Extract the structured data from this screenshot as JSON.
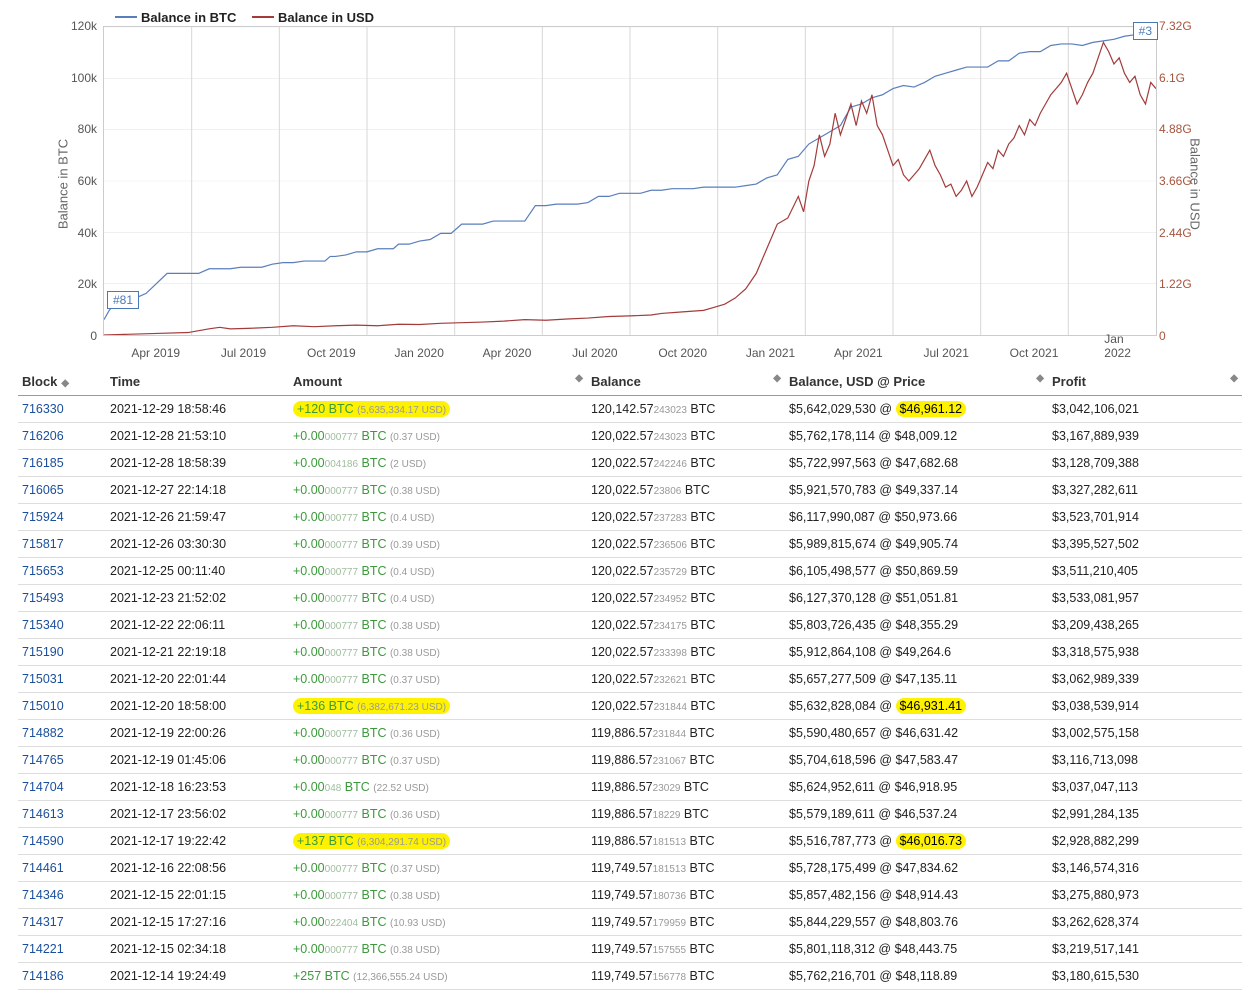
{
  "chart": {
    "width_plot": 1054,
    "height_plot": 310,
    "legend": [
      {
        "label": "Balance in BTC",
        "color": "#5a7ebc"
      },
      {
        "label": "Balance in USD",
        "color": "#a33b3b"
      }
    ],
    "y_left": {
      "title": "Balance in BTC",
      "ticks": [
        "0",
        "20k",
        "40k",
        "60k",
        "80k",
        "100k",
        "120k"
      ],
      "color": "#555"
    },
    "y_right": {
      "title": "Balance in USD",
      "ticks": [
        "0",
        "1.22G",
        "2.44G",
        "3.66G",
        "4.88G",
        "6.1G",
        "7.32G"
      ],
      "color": "#a8543d"
    },
    "x_labels": [
      "Apr 2019",
      "Jul 2019",
      "Oct 2019",
      "Jan 2020",
      "Apr 2020",
      "Jul 2020",
      "Oct 2020",
      "Jan 2021",
      "Apr 2021",
      "Jul 2021",
      "Oct 2021",
      "Jan 2022"
    ],
    "btc_color": "#5a7ebc",
    "usd_color": "#a33b3b",
    "grid_color": "#d9d9d9",
    "btc_line": [
      [
        0,
        95
      ],
      [
        0.5,
        92
      ],
      [
        1,
        90
      ],
      [
        2,
        90
      ],
      [
        3,
        88
      ],
      [
        4,
        86.5
      ],
      [
        6,
        80
      ],
      [
        8,
        80
      ],
      [
        9,
        80
      ],
      [
        10,
        78.5
      ],
      [
        12,
        78.5
      ],
      [
        13,
        78
      ],
      [
        15,
        78
      ],
      [
        16,
        77
      ],
      [
        17,
        76.5
      ],
      [
        18,
        76.5
      ],
      [
        19,
        76
      ],
      [
        21,
        76
      ],
      [
        21.5,
        74.5
      ],
      [
        22,
        74.5
      ],
      [
        23,
        74
      ],
      [
        24,
        73
      ],
      [
        25,
        73
      ],
      [
        26,
        72
      ],
      [
        27.5,
        72
      ],
      [
        28,
        70.5
      ],
      [
        29,
        70.5
      ],
      [
        30,
        69.5
      ],
      [
        31,
        69
      ],
      [
        32,
        67
      ],
      [
        33,
        67
      ],
      [
        34,
        64
      ],
      [
        36,
        64
      ],
      [
        37,
        63
      ],
      [
        39,
        63
      ],
      [
        40,
        63
      ],
      [
        41,
        58
      ],
      [
        42,
        58
      ],
      [
        43,
        57.5
      ],
      [
        45,
        57.5
      ],
      [
        46,
        57
      ],
      [
        47,
        55
      ],
      [
        48,
        55
      ],
      [
        49,
        54
      ],
      [
        51,
        54
      ],
      [
        52,
        53
      ],
      [
        53,
        53
      ],
      [
        54,
        52.5
      ],
      [
        56,
        52.5
      ],
      [
        57,
        52
      ],
      [
        59,
        52
      ],
      [
        60,
        52
      ],
      [
        61,
        51.5
      ],
      [
        62,
        51
      ],
      [
        63,
        49
      ],
      [
        64,
        48
      ],
      [
        65,
        43
      ],
      [
        66,
        42
      ],
      [
        67,
        38
      ],
      [
        68,
        36
      ],
      [
        69,
        34
      ],
      [
        70,
        32
      ],
      [
        71,
        26
      ],
      [
        72,
        25
      ],
      [
        73,
        23
      ],
      [
        74,
        22
      ],
      [
        75,
        20
      ],
      [
        76,
        19
      ],
      [
        77,
        19.5
      ],
      [
        78,
        18
      ],
      [
        79,
        16
      ],
      [
        80,
        15
      ],
      [
        81,
        14
      ],
      [
        82,
        13
      ],
      [
        83,
        13
      ],
      [
        84,
        13
      ],
      [
        85,
        11
      ],
      [
        86,
        11
      ],
      [
        87,
        8.5
      ],
      [
        88,
        8
      ],
      [
        89,
        8
      ],
      [
        90,
        6
      ],
      [
        91,
        5.5
      ],
      [
        92,
        5.5
      ],
      [
        93,
        6
      ],
      [
        94,
        5
      ],
      [
        95,
        4.5
      ],
      [
        96,
        4
      ],
      [
        97,
        3
      ],
      [
        98,
        2.5
      ],
      [
        99,
        1
      ],
      [
        100,
        0
      ]
    ],
    "usd_line": [
      [
        0,
        100
      ],
      [
        2,
        99.8
      ],
      [
        5,
        99.5
      ],
      [
        8,
        99.2
      ],
      [
        10,
        98
      ],
      [
        11,
        97.5
      ],
      [
        12,
        98
      ],
      [
        14,
        97.8
      ],
      [
        16,
        97.5
      ],
      [
        18,
        97
      ],
      [
        20,
        97.3
      ],
      [
        22,
        97
      ],
      [
        24,
        96.8
      ],
      [
        26,
        97
      ],
      [
        28,
        96.5
      ],
      [
        30,
        96.6
      ],
      [
        32,
        96.2
      ],
      [
        34,
        96
      ],
      [
        36,
        95.8
      ],
      [
        38,
        95.5
      ],
      [
        40,
        95
      ],
      [
        42,
        95.2
      ],
      [
        44,
        94.8
      ],
      [
        46,
        94.5
      ],
      [
        48,
        94
      ],
      [
        50,
        93.8
      ],
      [
        52,
        93.5
      ],
      [
        53,
        93
      ],
      [
        55,
        92.5
      ],
      [
        57,
        92
      ],
      [
        58,
        91
      ],
      [
        59,
        90
      ],
      [
        60,
        88
      ],
      [
        61,
        85
      ],
      [
        62,
        80
      ],
      [
        63,
        72
      ],
      [
        64,
        64
      ],
      [
        65,
        62
      ],
      [
        66,
        55
      ],
      [
        66.5,
        60
      ],
      [
        67,
        50
      ],
      [
        67.5,
        45
      ],
      [
        68,
        35
      ],
      [
        68.5,
        42
      ],
      [
        69,
        38
      ],
      [
        69.5,
        28
      ],
      [
        70,
        35
      ],
      [
        70.5,
        30
      ],
      [
        71,
        25
      ],
      [
        71.5,
        32
      ],
      [
        72,
        24
      ],
      [
        72.5,
        28
      ],
      [
        73,
        22
      ],
      [
        73.5,
        32
      ],
      [
        74,
        35
      ],
      [
        74.5,
        40
      ],
      [
        75,
        45
      ],
      [
        75.5,
        43
      ],
      [
        76,
        48
      ],
      [
        76.5,
        50
      ],
      [
        77,
        48
      ],
      [
        77.5,
        46
      ],
      [
        78,
        43
      ],
      [
        78.5,
        40
      ],
      [
        79,
        45
      ],
      [
        79.5,
        48
      ],
      [
        80,
        52
      ],
      [
        80.5,
        51
      ],
      [
        81,
        55
      ],
      [
        81.5,
        53
      ],
      [
        82,
        50
      ],
      [
        82.5,
        55
      ],
      [
        83,
        52
      ],
      [
        83.5,
        48
      ],
      [
        84,
        44
      ],
      [
        84.5,
        46
      ],
      [
        85,
        40
      ],
      [
        85.5,
        42
      ],
      [
        86,
        38
      ],
      [
        86.5,
        36
      ],
      [
        87,
        32
      ],
      [
        87.5,
        35
      ],
      [
        88,
        30
      ],
      [
        88.5,
        32
      ],
      [
        89,
        28
      ],
      [
        89.5,
        25
      ],
      [
        90,
        22
      ],
      [
        90.5,
        20
      ],
      [
        91,
        18
      ],
      [
        91.5,
        15
      ],
      [
        92,
        20
      ],
      [
        92.5,
        25
      ],
      [
        93,
        22
      ],
      [
        93.5,
        18
      ],
      [
        94,
        15
      ],
      [
        94.5,
        10
      ],
      [
        95,
        5
      ],
      [
        95.5,
        8
      ],
      [
        96,
        12
      ],
      [
        96.5,
        10
      ],
      [
        97,
        15
      ],
      [
        97.5,
        18
      ],
      [
        98,
        16
      ],
      [
        98.5,
        22
      ],
      [
        99,
        25
      ],
      [
        99.5,
        18
      ],
      [
        100,
        20
      ]
    ],
    "badge_left": "#81",
    "badge_right": "#3"
  },
  "table": {
    "headers": [
      "Block",
      "Time",
      "Amount",
      "Balance",
      "Balance, USD @ Price",
      "Profit"
    ],
    "rows": [
      {
        "block": "716330",
        "time": "2021-12-29 18:58:46",
        "amt_big": "+120 BTC",
        "amt_small": "(5,635,334.17 USD)",
        "hl_amt": true,
        "bal": "120,142.57",
        "bal_small": "243023",
        "bal_unit": " BTC",
        "usd": "$5,642,029,530 @ ",
        "price": "$46,961.12",
        "hl_price": true,
        "profit": "$3,042,106,021"
      },
      {
        "block": "716206",
        "time": "2021-12-28 21:53:10",
        "amt_big": "+0.00",
        "amt_sub": "000777",
        "amt_unit": " BTC ",
        "amt_small": "(0.37 USD)",
        "bal": "120,022.57",
        "bal_small": "243023",
        "bal_unit": " BTC",
        "usd": "$5,762,178,114 @ $48,009.12",
        "profit": "$3,167,889,939"
      },
      {
        "block": "716185",
        "time": "2021-12-28 18:58:39",
        "amt_big": "+0.00",
        "amt_sub": "004186",
        "amt_unit": " BTC ",
        "amt_small": "(2 USD)",
        "bal": "120,022.57",
        "bal_small": "242246",
        "bal_unit": " BTC",
        "usd": "$5,722,997,563 @ $47,682.68",
        "profit": "$3,128,709,388"
      },
      {
        "block": "716065",
        "time": "2021-12-27 22:14:18",
        "amt_big": "+0.00",
        "amt_sub": "000777",
        "amt_unit": " BTC ",
        "amt_small": "(0.38 USD)",
        "bal": "120,022.57",
        "bal_small": "23806",
        "bal_unit": " BTC",
        "usd": "$5,921,570,783 @ $49,337.14",
        "profit": "$3,327,282,611"
      },
      {
        "block": "715924",
        "time": "2021-12-26 21:59:47",
        "amt_big": "+0.00",
        "amt_sub": "000777",
        "amt_unit": " BTC ",
        "amt_small": "(0.4 USD)",
        "bal": "120,022.57",
        "bal_small": "237283",
        "bal_unit": " BTC",
        "usd": "$6,117,990,087 @ $50,973.66",
        "profit": "$3,523,701,914"
      },
      {
        "block": "715817",
        "time": "2021-12-26 03:30:30",
        "amt_big": "+0.00",
        "amt_sub": "000777",
        "amt_unit": " BTC ",
        "amt_small": "(0.39 USD)",
        "bal": "120,022.57",
        "bal_small": "236506",
        "bal_unit": " BTC",
        "usd": "$5,989,815,674 @ $49,905.74",
        "profit": "$3,395,527,502"
      },
      {
        "block": "715653",
        "time": "2021-12-25 00:11:40",
        "amt_big": "+0.00",
        "amt_sub": "000777",
        "amt_unit": " BTC ",
        "amt_small": "(0.4 USD)",
        "bal": "120,022.57",
        "bal_small": "235729",
        "bal_unit": " BTC",
        "usd": "$6,105,498,577 @ $50,869.59",
        "profit": "$3,511,210,405"
      },
      {
        "block": "715493",
        "time": "2021-12-23 21:52:02",
        "amt_big": "+0.00",
        "amt_sub": "000777",
        "amt_unit": " BTC ",
        "amt_small": "(0.4 USD)",
        "bal": "120,022.57",
        "bal_small": "234952",
        "bal_unit": " BTC",
        "usd": "$6,127,370,128 @ $51,051.81",
        "profit": "$3,533,081,957"
      },
      {
        "block": "715340",
        "time": "2021-12-22 22:06:11",
        "amt_big": "+0.00",
        "amt_sub": "000777",
        "amt_unit": " BTC ",
        "amt_small": "(0.38 USD)",
        "bal": "120,022.57",
        "bal_small": "234175",
        "bal_unit": " BTC",
        "usd": "$5,803,726,435 @ $48,355.29",
        "profit": "$3,209,438,265"
      },
      {
        "block": "715190",
        "time": "2021-12-21 22:19:18",
        "amt_big": "+0.00",
        "amt_sub": "000777",
        "amt_unit": " BTC ",
        "amt_small": "(0.38 USD)",
        "bal": "120,022.57",
        "bal_small": "233398",
        "bal_unit": " BTC",
        "usd": "$5,912,864,108 @ $49,264.6",
        "profit": "$3,318,575,938"
      },
      {
        "block": "715031",
        "time": "2021-12-20 22:01:44",
        "amt_big": "+0.00",
        "amt_sub": "000777",
        "amt_unit": " BTC ",
        "amt_small": "(0.37 USD)",
        "bal": "120,022.57",
        "bal_small": "232621",
        "bal_unit": " BTC",
        "usd": "$5,657,277,509 @ $47,135.11",
        "profit": "$3,062,989,339"
      },
      {
        "block": "715010",
        "time": "2021-12-20 18:58:00",
        "amt_big": "+136 BTC",
        "amt_small": "(6,382,671.23 USD)",
        "hl_amt": true,
        "bal": "120,022.57",
        "bal_small": "231844",
        "bal_unit": " BTC",
        "usd": "$5,632,828,084 @ ",
        "price": "$46,931.41",
        "hl_price": true,
        "profit": "$3,038,539,914"
      },
      {
        "block": "714882",
        "time": "2021-12-19 22:00:26",
        "amt_big": "+0.00",
        "amt_sub": "000777",
        "amt_unit": " BTC ",
        "amt_small": "(0.36 USD)",
        "bal": "119,886.57",
        "bal_small": "231844",
        "bal_unit": " BTC",
        "usd": "$5,590,480,657 @ $46,631.42",
        "profit": "$3,002,575,158"
      },
      {
        "block": "714765",
        "time": "2021-12-19 01:45:06",
        "amt_big": "+0.00",
        "amt_sub": "000777",
        "amt_unit": " BTC ",
        "amt_small": "(0.37 USD)",
        "bal": "119,886.57",
        "bal_small": "231067",
        "bal_unit": " BTC",
        "usd": "$5,704,618,596 @ $47,583.47",
        "profit": "$3,116,713,098"
      },
      {
        "block": "714704",
        "time": "2021-12-18 16:23:53",
        "amt_big": "+0.00",
        "amt_sub": "048",
        "amt_unit": " BTC ",
        "amt_small": "(22.52 USD)",
        "bal": "119,886.57",
        "bal_small": "23029",
        "bal_unit": " BTC",
        "usd": "$5,624,952,611 @ $46,918.95",
        "profit": "$3,037,047,113"
      },
      {
        "block": "714613",
        "time": "2021-12-17 23:56:02",
        "amt_big": "+0.00",
        "amt_sub": "000777",
        "amt_unit": " BTC ",
        "amt_small": "(0.36 USD)",
        "bal": "119,886.57",
        "bal_small": "18229",
        "bal_unit": " BTC",
        "usd": "$5,579,189,611 @ $46,537.24",
        "profit": "$2,991,284,135"
      },
      {
        "block": "714590",
        "time": "2021-12-17 19:22:42",
        "amt_big": "+137 BTC",
        "amt_small": "(6,304,291.74 USD)",
        "hl_amt": true,
        "bal": "119,886.57",
        "bal_small": "181513",
        "bal_unit": " BTC",
        "usd": "$5,516,787,773 @ ",
        "price": "$46,016.73",
        "hl_price": true,
        "profit": "$2,928,882,299"
      },
      {
        "block": "714461",
        "time": "2021-12-16 22:08:56",
        "amt_big": "+0.00",
        "amt_sub": "000777",
        "amt_unit": " BTC ",
        "amt_small": "(0.37 USD)",
        "bal": "119,749.57",
        "bal_small": "181513",
        "bal_unit": " BTC",
        "usd": "$5,728,175,499 @ $47,834.62",
        "profit": "$3,146,574,316"
      },
      {
        "block": "714346",
        "time": "2021-12-15 22:01:15",
        "amt_big": "+0.00",
        "amt_sub": "000777",
        "amt_unit": " BTC ",
        "amt_small": "(0.38 USD)",
        "bal": "119,749.57",
        "bal_small": "180736",
        "bal_unit": " BTC",
        "usd": "$5,857,482,156 @ $48,914.43",
        "profit": "$3,275,880,973"
      },
      {
        "block": "714317",
        "time": "2021-12-15 17:27:16",
        "amt_big": "+0.00",
        "amt_sub": "022404",
        "amt_unit": " BTC ",
        "amt_small": "(10.93 USD)",
        "bal": "119,749.57",
        "bal_small": "179959",
        "bal_unit": " BTC",
        "usd": "$5,844,229,557 @ $48,803.76",
        "profit": "$3,262,628,374"
      },
      {
        "block": "714221",
        "time": "2021-12-15 02:34:18",
        "amt_big": "+0.00",
        "amt_sub": "000777",
        "amt_unit": " BTC ",
        "amt_small": "(0.38 USD)",
        "bal": "119,749.57",
        "bal_small": "157555",
        "bal_unit": " BTC",
        "usd": "$5,801,118,312 @ $48,443.75",
        "profit": "$3,219,517,141"
      },
      {
        "block": "714186",
        "time": "2021-12-14 19:24:49",
        "amt_big": "+257 BTC",
        "amt_small": "(12,366,555.24 USD)",
        "bal": "119,749.57",
        "bal_small": "156778",
        "bal_unit": " BTC",
        "usd": "$5,762,216,701 @ $48,118.89",
        "profit": "$3,180,615,530"
      }
    ]
  }
}
